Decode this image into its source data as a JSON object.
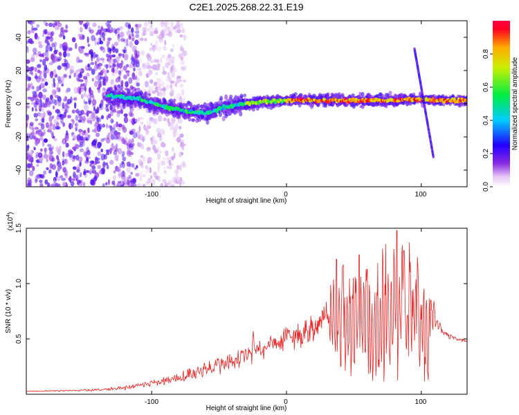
{
  "page_title": "C2E1.2025.268.22.31.E19",
  "colors": {
    "snr_line": "#ee2222",
    "frame": "#000000",
    "background": "#ffffff"
  },
  "chart_data": [
    {
      "type": "heatmap",
      "title": "C2E1.2025.268.22.31.E19",
      "xlabel": "Height of straight line (km)",
      "ylabel": "Frequency (Hz)",
      "xlim": [
        -193,
        134
      ],
      "ylim": [
        -50,
        50
      ],
      "xticks": [
        -100,
        0,
        100
      ],
      "xtick_labels": [
        "-100",
        "0",
        "100"
      ],
      "yticks": [
        -40,
        -20,
        0,
        20,
        40
      ],
      "ytick_labels": [
        "-40",
        "-20",
        "0",
        "20",
        "40"
      ],
      "colorbar": {
        "label": "Normalized spectral amplitude",
        "range": [
          0,
          1
        ],
        "ticks": [
          0.0,
          0.2,
          0.4,
          0.6,
          0.8
        ],
        "tick_labels": [
          "0.0",
          "0.2",
          "0.4",
          "0.6",
          "0.8"
        ],
        "colormap": "rainbow (white - violet - blue - cyan - green - yellow - red)"
      },
      "features": [
        {
          "name": "broadband noise",
          "x_range": [
            -193,
            -110
          ],
          "freq_range": [
            -50,
            50
          ],
          "amplitude": 0.15
        },
        {
          "name": "main ridge",
          "points": [
            [
              -133,
              5
            ],
            [
              -110,
              3
            ],
            [
              -90,
              -2
            ],
            [
              -70,
              -5
            ],
            [
              -60,
              -6
            ],
            [
              -50,
              -3
            ],
            [
              -40,
              -1
            ],
            [
              -30,
              0
            ],
            [
              -20,
              1
            ],
            [
              0,
              2
            ],
            [
              20,
              2
            ],
            [
              40,
              2
            ],
            [
              60,
              2
            ],
            [
              80,
              2
            ],
            [
              90,
              3
            ],
            [
              110,
              2
            ],
            [
              134,
              2
            ]
          ],
          "amplitude_min": 0.4,
          "amplitude_max": 1.0
        },
        {
          "name": "dispersed streak",
          "points": [
            [
              95,
              33
            ],
            [
              109,
              -32
            ]
          ],
          "amplitude": 0.2
        }
      ]
    },
    {
      "type": "line",
      "xlabel": "Height of straight line (km)",
      "ylabel": "SNR (10 * v/v)",
      "y_multiplier_label": "(x10",
      "y_multiplier_exponent": "4",
      "y_multiplier_close": ")",
      "xlim": [
        -193,
        134
      ],
      "ylim": [
        0,
        1.5
      ],
      "xticks": [
        -100,
        0,
        100
      ],
      "xtick_labels": [
        "-100",
        "0",
        "100"
      ],
      "yticks": [
        0.5,
        1.0,
        1.5
      ],
      "ytick_labels": [
        "0.5",
        "1.0",
        "1.5"
      ],
      "series": [
        {
          "name": "SNR",
          "color": "#ee2222",
          "envelope": [
            [
              -193,
              0.02,
              0.03
            ],
            [
              -160,
              0.02,
              0.04
            ],
            [
              -140,
              0.02,
              0.05
            ],
            [
              -120,
              0.02,
              0.08
            ],
            [
              -110,
              0.03,
              0.11
            ],
            [
              -100,
              0.04,
              0.13
            ],
            [
              -90,
              0.05,
              0.16
            ],
            [
              -80,
              0.06,
              0.2
            ],
            [
              -70,
              0.08,
              0.25
            ],
            [
              -60,
              0.1,
              0.3
            ],
            [
              -50,
              0.1,
              0.35
            ],
            [
              -40,
              0.12,
              0.38
            ],
            [
              -30,
              0.15,
              0.45
            ],
            [
              -20,
              0.2,
              0.5
            ],
            [
              -10,
              0.25,
              0.58
            ],
            [
              0,
              0.28,
              0.62
            ],
            [
              10,
              0.3,
              0.68
            ],
            [
              20,
              0.35,
              0.75
            ],
            [
              30,
              0.4,
              0.85
            ],
            [
              35,
              0.3,
              1.1
            ],
            [
              40,
              0.2,
              1.2
            ],
            [
              50,
              0.1,
              1.15
            ],
            [
              60,
              0.05,
              1.25
            ],
            [
              70,
              0.1,
              1.3
            ],
            [
              80,
              0.05,
              1.48
            ],
            [
              90,
              0.05,
              1.35
            ],
            [
              100,
              0.05,
              1.25
            ],
            [
              105,
              0.05,
              0.9
            ],
            [
              110,
              0.5,
              0.85
            ],
            [
              115,
              0.5,
              0.6
            ],
            [
              120,
              0.48,
              0.55
            ],
            [
              134,
              0.45,
              0.49
            ]
          ],
          "spikes": [
            [
              -25,
              0.61
            ],
            [
              -18,
              0.38
            ],
            [
              37,
              1.22
            ],
            [
              42,
              1.17
            ],
            [
              54,
              1.26
            ],
            [
              60,
              1.13
            ],
            [
              75,
              1.1
            ],
            [
              82,
              1.48
            ],
            [
              87,
              1.3
            ],
            [
              91,
              1.37
            ],
            [
              97,
              1.24
            ],
            [
              107,
              0.85
            ]
          ]
        }
      ]
    }
  ]
}
